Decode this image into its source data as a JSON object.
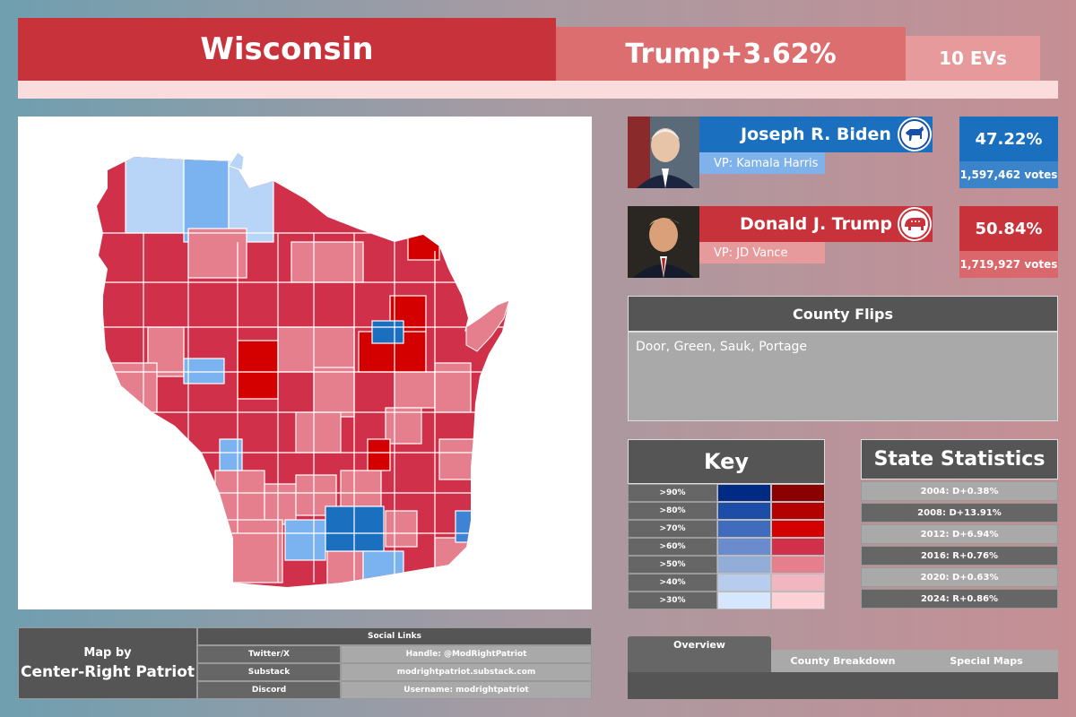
{
  "header": {
    "state": "Wisconsin",
    "margin": "Trump+3.62%",
    "evs": "10 EVs"
  },
  "colors": {
    "dem_primary": "#1a6fbf",
    "dem_light": "#7bb2f0",
    "rep_primary": "#c8323a",
    "rep_light": "#e79a9c",
    "panel_dark": "#555555",
    "panel_light": "#a9a9a9"
  },
  "candidates": [
    {
      "name": "Joseph R. Biden",
      "vp": "VP: Kamala Harris",
      "pct": "47.22%",
      "votes": "1,597,462 votes",
      "party_icon": "donkey-icon",
      "name_color": "#1a6fbf",
      "vp_color": "#7fb2ea",
      "pct_color": "#1a6fbf",
      "votes_color": "#3b84c9"
    },
    {
      "name": "Donald J. Trump",
      "vp": "VP: JD Vance",
      "pct": "50.84%",
      "votes": "1,719,927 votes",
      "party_icon": "elephant-icon",
      "name_color": "#c8323a",
      "vp_color": "#e79a9c",
      "pct_color": "#c8323a",
      "votes_color": "#d9676b"
    }
  ],
  "county_flips": {
    "title": "County Flips",
    "body": "Door, Green, Sauk, Portage"
  },
  "key": {
    "title": "Key",
    "rows": [
      {
        "label": ">90%",
        "dem": "#002b84",
        "rep": "#8b0000"
      },
      {
        "label": ">80%",
        "dem": "#1c4ea8",
        "rep": "#b30000"
      },
      {
        "label": ">70%",
        "dem": "#3f6cbc",
        "rep": "#d40000"
      },
      {
        "label": ">60%",
        "dem": "#6a8bcc",
        "rep": "#d0304a"
      },
      {
        "label": ">50%",
        "dem": "#91add8",
        "rep": "#e57f8e"
      },
      {
        "label": ">40%",
        "dem": "#b8cdee",
        "rep": "#f2b6c0"
      },
      {
        "label": ">30%",
        "dem": "#d6e6ff",
        "rep": "#fdd0d5"
      }
    ]
  },
  "state_stats": {
    "title": "State Statistics",
    "rows": [
      "2004: D+0.38%",
      "2008: D+13.91%",
      "2012: D+6.94%",
      "2016: R+0.76%",
      "2020: D+0.63%",
      "2024: R+0.86%"
    ]
  },
  "credits": {
    "top": "Map by",
    "name": "Center-Right Patriot",
    "social_title": "Social Links",
    "links": [
      {
        "label": "Twitter/X",
        "value": "Handle: @ModRightPatriot"
      },
      {
        "label": "Substack",
        "value": "modrightpatriot.substack.com"
      },
      {
        "label": "Discord",
        "value": "Username: modrightpatriot"
      }
    ]
  },
  "tabs": [
    "Overview",
    "County Breakdown",
    "Special Maps"
  ]
}
